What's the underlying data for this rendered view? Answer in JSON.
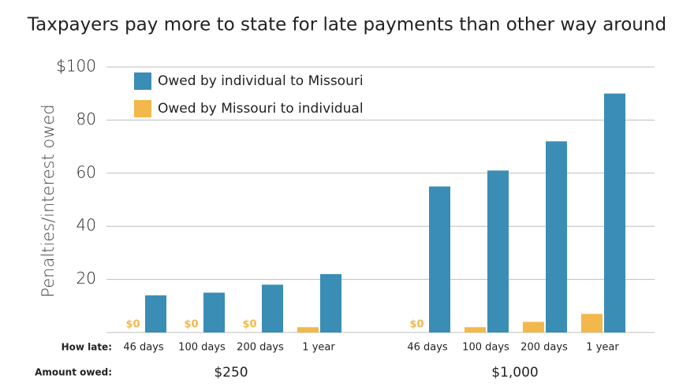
{
  "chart_data": {
    "type": "grouped_bar",
    "title": "Taxpayers pay more to state for late payments than other way around",
    "y_label": "Penalties/interest owed",
    "category_axis_label": "How late:",
    "group_axis_label": "Amount owed:",
    "group_labels": [
      "$250",
      "$1,000"
    ],
    "categories": [
      "46 days",
      "100 days",
      "200 days",
      "1 year",
      "46 days",
      "100 days",
      "200 days",
      "1 year"
    ],
    "series": [
      {
        "name": "Owed by individual to Missouri",
        "color": "#3a8db5",
        "values": [
          14,
          15,
          18,
          22,
          55,
          61,
          72,
          90
        ]
      },
      {
        "name": "Owed by Missouri to individual",
        "color": "#f2b84b",
        "values": [
          0,
          0,
          0,
          2,
          0,
          2,
          4,
          7
        ],
        "value_labels": [
          "$0",
          "$0",
          "$0",
          null,
          "$0",
          null,
          null,
          null
        ]
      }
    ],
    "ylim": [
      0,
      100
    ],
    "yticks": [
      20,
      40,
      60,
      80,
      {
        "value": 100,
        "label": "$100"
      }
    ],
    "grid": true
  }
}
